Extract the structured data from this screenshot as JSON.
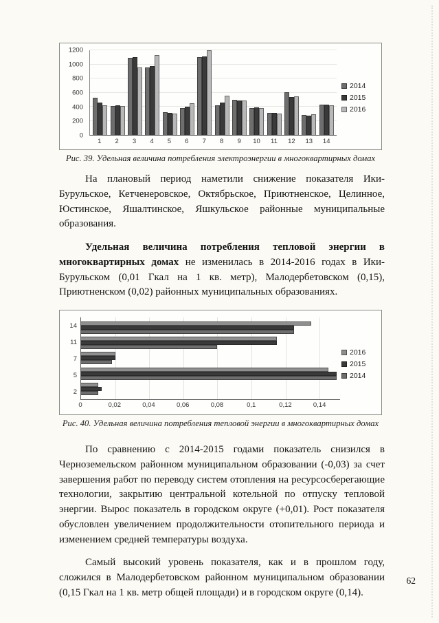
{
  "page": {
    "number": "62"
  },
  "figure39": {
    "caption": "Рис. 39. Удельная величина потребления электроэнергии в многоквартирных домах"
  },
  "figure40": {
    "caption": "Рис. 40. Удельная величина потребления тепловой энергии в многоквартирных домах"
  },
  "paragraphs": {
    "p1": "На плановый период наметили снижение показателя Ики-Бурульское, Кетченеровское, Октябрьское, Приютненское, Целинное, Юстинское, Яшалтинское, Яшкульское районные муниципальные образования.",
    "p2_bold": "Удельная величина потребления тепловой энергии в многоквартирных домах",
    "p2_rest": " не изменилась в 2014-2016 годах в Ики-Бурульском (0,01 Гкал на 1 кв. метр), Малодербетовском (0,15), Приютненском (0,02) районных муниципальных образованиях.",
    "p3": "По сравнению с 2014-2015 годами показатель снизился в Черноземельском районном муниципальном образовании (-0,03) за счет завершения работ по переводу систем отопления на ресурсосберегающие технологии, закрытию центральной котельной по отпуску тепловой энергии. Вырос показатель в городском округе (+0,01). Рост показателя обусловлен увеличением продолжительности отопительного периода и изменением средней температуры воздуха.",
    "p4": "Самый высокий уровень показателя, как и в прошлом году, сложился в Малодербетовском районном муниципальном образовании (0,15 Гкал на 1 кв. метр общей площади) и в городском округе (0,14)."
  },
  "chart_data": [
    {
      "type": "bar",
      "orientation": "vertical",
      "title": "",
      "categories": [
        "1",
        "2",
        "3",
        "4",
        "5",
        "6",
        "7",
        "8",
        "9",
        "10",
        "11",
        "12",
        "13",
        "14"
      ],
      "series": [
        {
          "name": "2014",
          "color": "#6e6e6e",
          "values": [
            530,
            410,
            1090,
            960,
            325,
            380,
            1100,
            420,
            500,
            380,
            310,
            605,
            280,
            430
          ]
        },
        {
          "name": "2015",
          "color": "#3a3a3a",
          "values": [
            455,
            420,
            1100,
            975,
            315,
            400,
            1115,
            455,
            490,
            390,
            315,
            540,
            270,
            430
          ]
        },
        {
          "name": "2016",
          "color": "#b8b8b8",
          "values": [
            420,
            410,
            955,
            1130,
            305,
            445,
            1200,
            560,
            485,
            380,
            305,
            550,
            290,
            420
          ]
        }
      ],
      "ylim": [
        0,
        1200
      ],
      "yticks": [
        0,
        200,
        400,
        600,
        800,
        1000,
        1200
      ],
      "grid": true,
      "legend_position": "right"
    },
    {
      "type": "bar",
      "orientation": "horizontal",
      "title": "",
      "categories": [
        "14",
        "11",
        "7",
        "5",
        "2"
      ],
      "series": [
        {
          "name": "2016",
          "color": "#8f8f8f",
          "values": [
            0.135,
            0.115,
            0.02,
            0.145,
            0.01
          ]
        },
        {
          "name": "2015",
          "color": "#3a3a3a",
          "values": [
            0.125,
            0.115,
            0.02,
            0.15,
            0.012
          ]
        },
        {
          "name": "2014",
          "color": "#6e6e6e",
          "values": [
            0.125,
            0.08,
            0.018,
            0.15,
            0.01
          ]
        }
      ],
      "xlim": [
        0,
        0.152
      ],
      "xticks": [
        0,
        0.02,
        0.04,
        0.06,
        0.08,
        0.1,
        0.12,
        0.14
      ],
      "xtick_labels": [
        "0",
        "0,02",
        "0,04",
        "0,06",
        "0,08",
        "0,1",
        "0,12",
        "0,14"
      ],
      "grid": true,
      "legend_position": "right"
    }
  ]
}
